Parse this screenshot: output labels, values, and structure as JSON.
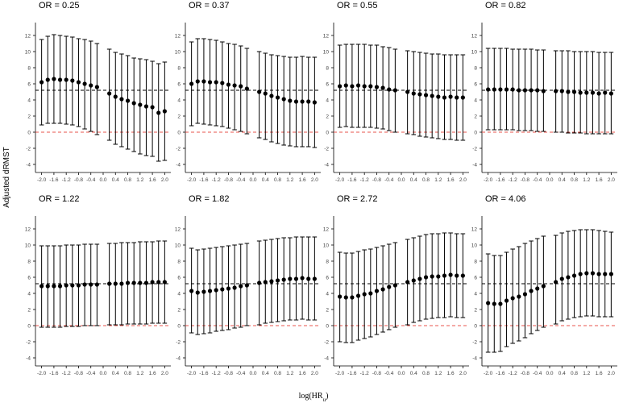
{
  "figure": {
    "ylabel": "Adjusted dRMST",
    "xlabel_main": "log(HR",
    "xlabel_sub": "u",
    "xlabel_close": ")"
  },
  "chart_data": [
    {
      "type": "scatter",
      "title": "OR = 0.25",
      "x": [
        -2.0,
        -1.8,
        -1.6,
        -1.4,
        -1.2,
        -1.0,
        -0.8,
        -0.6,
        -0.4,
        -0.2,
        0.2,
        0.4,
        0.6,
        0.8,
        1.0,
        1.2,
        1.4,
        1.6,
        1.8,
        2.0
      ],
      "y": [
        6.2,
        6.5,
        6.6,
        6.5,
        6.5,
        6.4,
        6.2,
        6.0,
        5.8,
        5.6,
        4.8,
        4.4,
        4.1,
        3.9,
        3.6,
        3.4,
        3.2,
        3.1,
        2.4,
        2.6
      ],
      "lower": [
        0.9,
        1.1,
        1.1,
        1.1,
        1.0,
        0.9,
        0.7,
        0.4,
        0.1,
        -0.3,
        -1.0,
        -1.5,
        -1.8,
        -2.1,
        -2.4,
        -2.7,
        -2.9,
        -3.0,
        -3.6,
        -3.5
      ],
      "upper": [
        11.5,
        11.9,
        12.1,
        12.0,
        11.9,
        11.8,
        11.6,
        11.5,
        11.3,
        11.0,
        10.3,
        9.9,
        9.7,
        9.5,
        9.2,
        9.1,
        9.0,
        8.8,
        8.5,
        8.7
      ],
      "hlines": [
        5.2,
        0
      ],
      "xticks": [
        "-2.0",
        "-1.6",
        "-1.2",
        "-0.8",
        "-0.4",
        "0.0",
        "0.4",
        "0.8",
        "1.2",
        "1.6",
        "2.0"
      ],
      "yticks": [
        "-4",
        "-2",
        "0",
        "2",
        "4",
        "6",
        "8",
        "10",
        "12"
      ],
      "xlim": [
        -2.2,
        2.2
      ],
      "ylim": [
        -5,
        13
      ]
    },
    {
      "type": "scatter",
      "title": "OR = 0.37",
      "x": [
        -2.0,
        -1.8,
        -1.6,
        -1.4,
        -1.2,
        -1.0,
        -0.8,
        -0.6,
        -0.4,
        -0.2,
        0.2,
        0.4,
        0.6,
        0.8,
        1.0,
        1.2,
        1.4,
        1.6,
        1.8,
        2.0
      ],
      "y": [
        6.0,
        6.3,
        6.3,
        6.2,
        6.2,
        6.1,
        5.9,
        5.8,
        5.7,
        5.4,
        5.0,
        4.8,
        4.5,
        4.3,
        4.1,
        3.9,
        3.8,
        3.8,
        3.8,
        3.7
      ],
      "lower": [
        0.8,
        1.1,
        1.0,
        0.9,
        0.8,
        0.7,
        0.5,
        0.3,
        0.1,
        -0.2,
        -0.7,
        -0.9,
        -1.2,
        -1.4,
        -1.6,
        -1.7,
        -1.8,
        -1.8,
        -1.8,
        -1.9
      ],
      "upper": [
        11.2,
        11.6,
        11.6,
        11.5,
        11.4,
        11.2,
        11.0,
        10.9,
        10.7,
        10.4,
        10.0,
        9.8,
        9.6,
        9.5,
        9.4,
        9.3,
        9.3,
        9.4,
        9.3,
        9.3
      ],
      "hlines": [
        5.2,
        0
      ],
      "xticks": [
        "-2.0",
        "-1.6",
        "-1.2",
        "-0.8",
        "-0.4",
        "0.0",
        "0.4",
        "0.8",
        "1.2",
        "1.6",
        "2.0"
      ],
      "yticks": [
        "-4",
        "-2",
        "0",
        "2",
        "4",
        "6",
        "8",
        "10",
        "12"
      ],
      "xlim": [
        -2.2,
        2.2
      ],
      "ylim": [
        -5,
        13
      ]
    },
    {
      "type": "scatter",
      "title": "OR = 0.55",
      "x": [
        -2.0,
        -1.8,
        -1.6,
        -1.4,
        -1.2,
        -1.0,
        -0.8,
        -0.6,
        -0.4,
        -0.2,
        0.2,
        0.4,
        0.6,
        0.8,
        1.0,
        1.2,
        1.4,
        1.6,
        1.8,
        2.0
      ],
      "y": [
        5.7,
        5.8,
        5.7,
        5.8,
        5.7,
        5.7,
        5.6,
        5.5,
        5.3,
        5.2,
        5.0,
        4.8,
        4.7,
        4.6,
        4.5,
        4.4,
        4.3,
        4.4,
        4.3,
        4.3
      ],
      "lower": [
        0.6,
        0.7,
        0.6,
        0.6,
        0.6,
        0.6,
        0.5,
        0.4,
        0.2,
        0.0,
        -0.2,
        -0.3,
        -0.5,
        -0.6,
        -0.7,
        -0.8,
        -0.9,
        -0.9,
        -1.0,
        -1.0
      ],
      "upper": [
        10.8,
        10.9,
        10.9,
        10.9,
        10.9,
        10.8,
        10.8,
        10.6,
        10.5,
        10.3,
        10.1,
        10.0,
        9.9,
        9.8,
        9.7,
        9.7,
        9.6,
        9.6,
        9.6,
        9.6
      ],
      "hlines": [
        5.2,
        0
      ],
      "xticks": [
        "-2.0",
        "-1.6",
        "-1.2",
        "-0.8",
        "-0.4",
        "0.0",
        "0.4",
        "0.8",
        "1.2",
        "1.6",
        "2.0"
      ],
      "yticks": [
        "-4",
        "-2",
        "0",
        "2",
        "4",
        "6",
        "8",
        "10",
        "12"
      ],
      "xlim": [
        -2.2,
        2.2
      ],
      "ylim": [
        -5,
        13
      ]
    },
    {
      "type": "scatter",
      "title": "OR = 0.82",
      "x": [
        -2.0,
        -1.8,
        -1.6,
        -1.4,
        -1.2,
        -1.0,
        -0.8,
        -0.6,
        -0.4,
        -0.2,
        0.2,
        0.4,
        0.6,
        0.8,
        1.0,
        1.2,
        1.4,
        1.6,
        1.8,
        2.0
      ],
      "y": [
        5.3,
        5.3,
        5.3,
        5.3,
        5.3,
        5.2,
        5.2,
        5.2,
        5.2,
        5.1,
        5.1,
        5.1,
        5.0,
        5.0,
        4.9,
        4.9,
        4.9,
        4.8,
        4.9,
        4.8
      ],
      "lower": [
        0.3,
        0.3,
        0.3,
        0.3,
        0.3,
        0.2,
        0.2,
        0.2,
        0.1,
        0.1,
        0.0,
        0.0,
        -0.1,
        -0.1,
        -0.1,
        -0.2,
        -0.2,
        -0.2,
        -0.2,
        -0.2
      ],
      "upper": [
        10.4,
        10.4,
        10.4,
        10.4,
        10.3,
        10.3,
        10.3,
        10.3,
        10.2,
        10.2,
        10.1,
        10.1,
        10.1,
        10.0,
        10.0,
        10.0,
        10.0,
        9.9,
        9.9,
        9.9
      ],
      "hlines": [
        5.2,
        0
      ],
      "xticks": [
        "-2.0",
        "-1.6",
        "-1.2",
        "-0.8",
        "-0.4",
        "0.0",
        "0.4",
        "0.8",
        "1.2",
        "1.6",
        "2.0"
      ],
      "yticks": [
        "-4",
        "-2",
        "0",
        "2",
        "4",
        "6",
        "8",
        "10",
        "12"
      ],
      "xlim": [
        -2.2,
        2.2
      ],
      "ylim": [
        -5,
        13
      ]
    },
    {
      "type": "scatter",
      "title": "OR = 1.22",
      "x": [
        -2.0,
        -1.8,
        -1.6,
        -1.4,
        -1.2,
        -1.0,
        -0.8,
        -0.6,
        -0.4,
        -0.2,
        0.2,
        0.4,
        0.6,
        0.8,
        1.0,
        1.2,
        1.4,
        1.6,
        1.8,
        2.0
      ],
      "y": [
        4.9,
        4.9,
        4.9,
        4.9,
        5.0,
        5.0,
        5.0,
        5.1,
        5.1,
        5.1,
        5.2,
        5.2,
        5.2,
        5.3,
        5.3,
        5.3,
        5.3,
        5.4,
        5.4,
        5.4
      ],
      "lower": [
        -0.2,
        -0.2,
        -0.2,
        -0.2,
        -0.1,
        -0.1,
        -0.1,
        0.0,
        0.0,
        0.0,
        0.1,
        0.1,
        0.1,
        0.2,
        0.2,
        0.2,
        0.2,
        0.3,
        0.3,
        0.3
      ],
      "upper": [
        9.9,
        9.9,
        9.9,
        9.9,
        10.0,
        10.0,
        10.0,
        10.1,
        10.1,
        10.1,
        10.2,
        10.2,
        10.3,
        10.3,
        10.3,
        10.4,
        10.4,
        10.4,
        10.5,
        10.5
      ],
      "hlines": [
        5.2,
        0
      ],
      "xticks": [
        "-2.0",
        "-1.6",
        "-1.2",
        "-0.8",
        "-0.4",
        "0.0",
        "0.4",
        "0.8",
        "1.2",
        "1.6",
        "2.0"
      ],
      "yticks": [
        "-4",
        "-2",
        "0",
        "2",
        "4",
        "6",
        "8",
        "10",
        "12"
      ],
      "xlim": [
        -2.2,
        2.2
      ],
      "ylim": [
        -5,
        13
      ]
    },
    {
      "type": "scatter",
      "title": "OR = 1.82",
      "x": [
        -2.0,
        -1.8,
        -1.6,
        -1.4,
        -1.2,
        -1.0,
        -0.8,
        -0.6,
        -0.4,
        -0.2,
        0.2,
        0.4,
        0.6,
        0.8,
        1.0,
        1.2,
        1.4,
        1.6,
        1.8,
        2.0
      ],
      "y": [
        4.3,
        4.1,
        4.2,
        4.3,
        4.4,
        4.5,
        4.6,
        4.7,
        4.9,
        5.0,
        5.3,
        5.4,
        5.5,
        5.6,
        5.7,
        5.8,
        5.8,
        5.9,
        5.8,
        5.8
      ],
      "lower": [
        -0.9,
        -1.1,
        -1.0,
        -0.9,
        -0.7,
        -0.6,
        -0.5,
        -0.3,
        -0.2,
        0.0,
        0.1,
        0.3,
        0.4,
        0.5,
        0.6,
        0.7,
        0.7,
        0.8,
        0.7,
        0.7
      ],
      "upper": [
        9.6,
        9.4,
        9.5,
        9.6,
        9.7,
        9.8,
        9.9,
        10.0,
        10.1,
        10.2,
        10.5,
        10.6,
        10.7,
        10.8,
        10.9,
        10.9,
        11.0,
        11.0,
        11.0,
        11.0
      ],
      "hlines": [
        5.2,
        0
      ],
      "xticks": [
        "-2.0",
        "-1.6",
        "-1.2",
        "-0.8",
        "-0.4",
        "0.0",
        "0.4",
        "0.8",
        "1.2",
        "1.6",
        "2.0"
      ],
      "yticks": [
        "-4",
        "-2",
        "0",
        "2",
        "4",
        "6",
        "8",
        "10",
        "12"
      ],
      "xlim": [
        -2.2,
        2.2
      ],
      "ylim": [
        -5,
        13
      ]
    },
    {
      "type": "scatter",
      "title": "OR = 2.72",
      "x": [
        -2.0,
        -1.8,
        -1.6,
        -1.4,
        -1.2,
        -1.0,
        -0.8,
        -0.6,
        -0.4,
        -0.2,
        0.2,
        0.4,
        0.6,
        0.8,
        1.0,
        1.2,
        1.4,
        1.6,
        1.8,
        2.0
      ],
      "y": [
        3.6,
        3.5,
        3.5,
        3.7,
        3.9,
        4.0,
        4.3,
        4.5,
        4.8,
        5.0,
        5.4,
        5.6,
        5.8,
        6.0,
        6.1,
        6.1,
        6.2,
        6.3,
        6.2,
        6.2
      ],
      "lower": [
        -2.0,
        -2.1,
        -2.1,
        -1.8,
        -1.6,
        -1.4,
        -1.1,
        -0.8,
        -0.5,
        -0.2,
        0.1,
        0.4,
        0.6,
        0.8,
        0.9,
        1.0,
        1.0,
        1.1,
        1.0,
        1.0
      ],
      "upper": [
        9.1,
        9.0,
        9.0,
        9.2,
        9.4,
        9.5,
        9.7,
        9.9,
        10.1,
        10.3,
        10.7,
        10.9,
        11.1,
        11.3,
        11.4,
        11.4,
        11.5,
        11.5,
        11.4,
        11.4
      ],
      "hlines": [
        5.2,
        0
      ],
      "xticks": [
        "-2.0",
        "-1.6",
        "-1.2",
        "-0.8",
        "-0.4",
        "0.0",
        "0.4",
        "0.8",
        "1.2",
        "1.6",
        "2.0"
      ],
      "yticks": [
        "-4",
        "-2",
        "0",
        "2",
        "4",
        "6",
        "8",
        "10",
        "12"
      ],
      "xlim": [
        -2.2,
        2.2
      ],
      "ylim": [
        -5,
        13
      ]
    },
    {
      "type": "scatter",
      "title": "OR = 4.06",
      "x": [
        -2.0,
        -1.8,
        -1.6,
        -1.4,
        -1.2,
        -1.0,
        -0.8,
        -0.6,
        -0.4,
        -0.2,
        0.2,
        0.4,
        0.6,
        0.8,
        1.0,
        1.2,
        1.4,
        1.6,
        1.8,
        2.0
      ],
      "y": [
        2.8,
        2.7,
        2.7,
        3.1,
        3.4,
        3.6,
        3.9,
        4.3,
        4.6,
        4.9,
        5.4,
        5.8,
        6.0,
        6.2,
        6.4,
        6.5,
        6.5,
        6.4,
        6.4,
        6.4
      ],
      "lower": [
        -3.3,
        -3.3,
        -3.2,
        -2.6,
        -2.2,
        -1.9,
        -1.5,
        -1.0,
        -0.6,
        -0.2,
        0.2,
        0.6,
        0.8,
        1.0,
        1.1,
        1.2,
        1.2,
        1.1,
        1.1,
        1.1
      ],
      "upper": [
        8.9,
        8.7,
        8.7,
        9.1,
        9.5,
        9.8,
        10.2,
        10.5,
        10.8,
        11.1,
        11.2,
        11.5,
        11.7,
        11.8,
        11.9,
        11.9,
        11.9,
        11.8,
        11.7,
        11.6
      ],
      "hlines": [
        5.2,
        0
      ],
      "xticks": [
        "-2.0",
        "-1.6",
        "-1.2",
        "-0.8",
        "-0.4",
        "0.0",
        "0.4",
        "0.8",
        "1.2",
        "1.6",
        "2.0"
      ],
      "yticks": [
        "-4",
        "-2",
        "0",
        "2",
        "4",
        "6",
        "8",
        "10",
        "12"
      ],
      "xlim": [
        -2.2,
        2.2
      ],
      "ylim": [
        -5,
        13
      ]
    }
  ]
}
